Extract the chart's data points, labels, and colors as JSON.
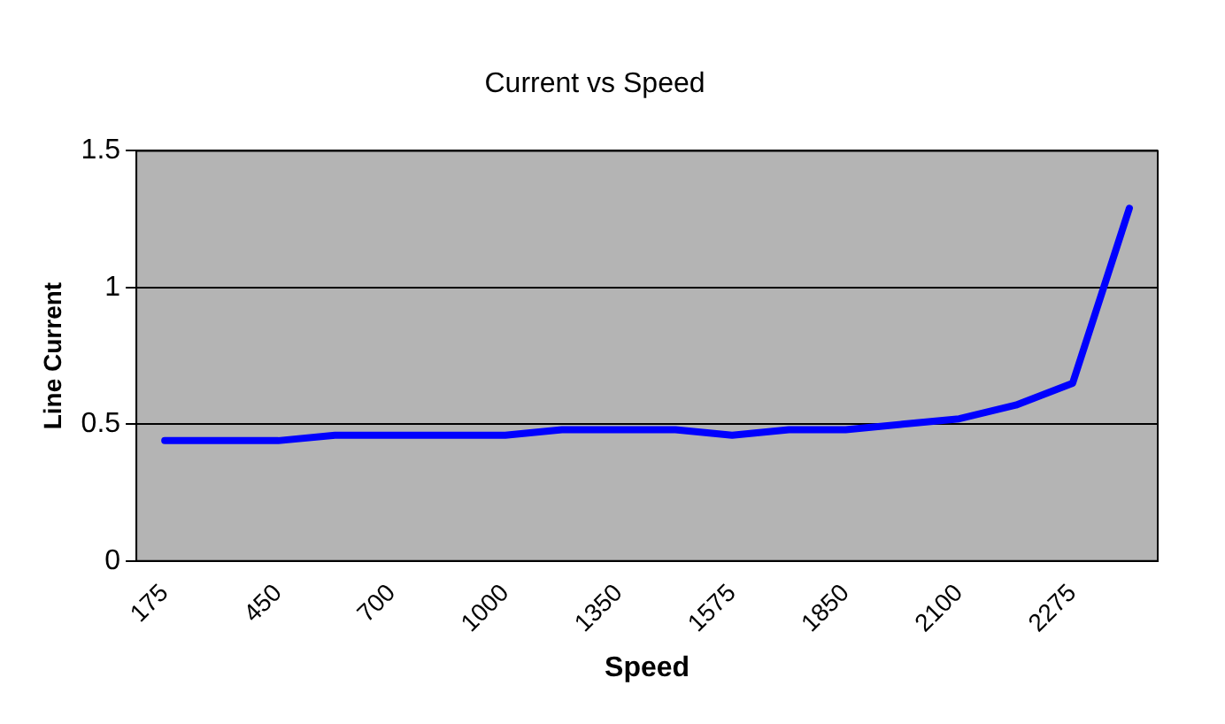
{
  "chart_data": {
    "type": "line",
    "title": "Current vs Speed",
    "xlabel": "Speed",
    "ylabel": "Line Current",
    "categories": [
      "175",
      null,
      "450",
      null,
      "700",
      null,
      "1000",
      null,
      "1350",
      null,
      "1575",
      null,
      "1850",
      null,
      "2100",
      null,
      "2275",
      null
    ],
    "series": [
      {
        "color": "#0000ff",
        "values": [
          0.44,
          0.44,
          0.44,
          0.46,
          0.46,
          0.46,
          0.46,
          0.48,
          0.48,
          0.48,
          0.46,
          0.48,
          0.48,
          0.5,
          0.52,
          0.57,
          0.65,
          1.29
        ]
      }
    ],
    "ylim": [
      0,
      1.5
    ],
    "yticks": [
      0,
      0.5,
      1,
      1.5
    ],
    "grid": "y",
    "legend": false,
    "marker": "none",
    "line_style": "solid"
  }
}
